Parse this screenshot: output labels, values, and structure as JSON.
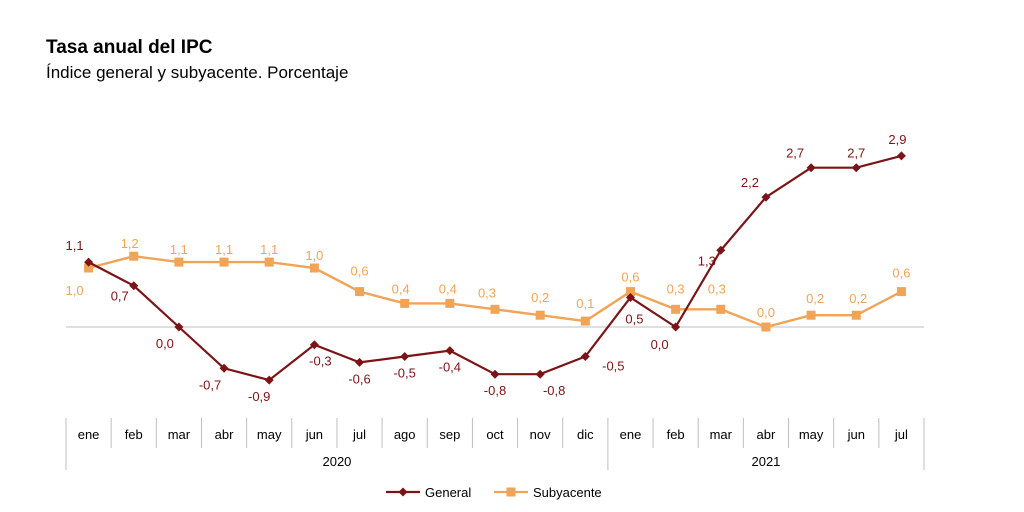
{
  "header": {
    "title": "Tasa anual del IPC",
    "subtitle": "Índice general y subyacente. Porcentaje"
  },
  "chart_data": {
    "type": "line",
    "title": "Tasa anual del IPC",
    "subtitle": "Índice general y subyacente. Porcentaje",
    "categories": [
      "ene",
      "feb",
      "mar",
      "abr",
      "may",
      "jun",
      "jul",
      "ago",
      "sep",
      "oct",
      "nov",
      "dic",
      "ene",
      "feb",
      "mar",
      "abr",
      "may",
      "jun",
      "jul"
    ],
    "years": [
      {
        "label": "2020",
        "start": 0,
        "end": 11
      },
      {
        "label": "2021",
        "start": 12,
        "end": 18
      }
    ],
    "series": [
      {
        "name": "General",
        "color": "#7b1416",
        "marker": "diamond",
        "values": [
          1.1,
          0.7,
          0.0,
          -0.7,
          -0.9,
          -0.3,
          -0.6,
          -0.5,
          -0.4,
          -0.8,
          -0.8,
          -0.5,
          0.5,
          0.0,
          1.3,
          2.2,
          2.7,
          2.7,
          2.9
        ],
        "labels": [
          "1,1",
          "0,7",
          "0,0",
          "-0,7",
          "-0,9",
          "-0,3",
          "-0,6",
          "-0,5",
          "-0,4",
          "-0,8",
          "-0,8",
          "-0,5",
          "0,5",
          "0,0",
          "1,3",
          "2,2",
          "2,7",
          "2,7",
          "2,9"
        ]
      },
      {
        "name": "Subyacente",
        "color": "#f0a458",
        "marker": "square",
        "values": [
          1.0,
          1.2,
          1.1,
          1.1,
          1.1,
          1.0,
          0.6,
          0.4,
          0.4,
          0.3,
          0.2,
          0.1,
          0.6,
          0.3,
          0.3,
          0.0,
          0.2,
          0.2,
          0.6
        ],
        "labels": [
          "1,0",
          "1,2",
          "1,1",
          "1,1",
          "1,1",
          "1,0",
          "0,6",
          "0,4",
          "0,4",
          "0,3",
          "0,2",
          "0,1",
          "0,6",
          "0,3",
          "0,3",
          "0,0",
          "0,2",
          "0,2",
          "0,6"
        ]
      }
    ],
    "ylim": [
      -1.2,
      3.2
    ],
    "grid": false,
    "legend": "bottom-center"
  }
}
